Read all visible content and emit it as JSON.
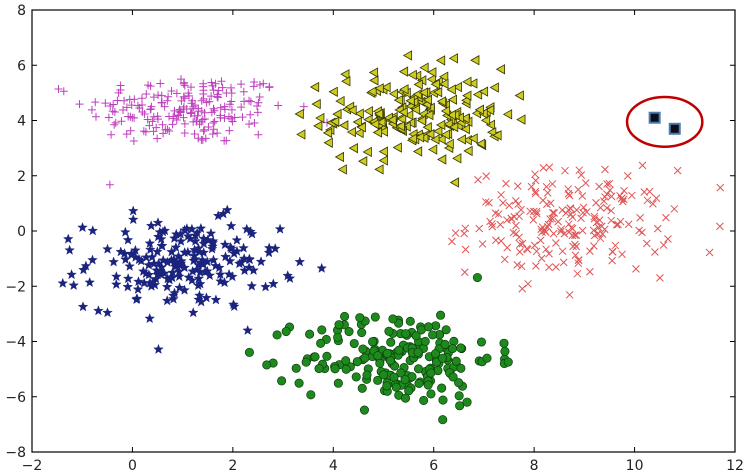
{
  "chart_data": {
    "type": "scatter",
    "title": "",
    "xlabel": "",
    "ylabel": "",
    "xlim": [
      -2,
      12
    ],
    "ylim": [
      -8,
      8
    ],
    "x_ticks": [
      -2,
      0,
      2,
      4,
      6,
      8,
      10,
      12
    ],
    "y_ticks": [
      -8,
      -6,
      -4,
      -2,
      0,
      2,
      4,
      6,
      8
    ],
    "x_tick_labels": [
      "−2",
      "0",
      "2",
      "4",
      "6",
      "8",
      "10",
      "12"
    ],
    "y_tick_labels": [
      "−8",
      "−6",
      "−4",
      "−2",
      "0",
      "2",
      "4",
      "6",
      "8"
    ],
    "grid": false,
    "legend": "none",
    "series": [
      {
        "marker": "plus",
        "color": "#bf40bf",
        "center": [
          1.1,
          4.4
        ],
        "spread": [
          1.0,
          0.65
        ],
        "count": 200
      },
      {
        "marker": "triangle-left",
        "color": "#cccc22",
        "center": [
          5.6,
          4.2
        ],
        "spread": [
          0.9,
          0.85
        ],
        "count": 200
      },
      {
        "marker": "x",
        "color": "#e05555",
        "center": [
          8.7,
          0.3
        ],
        "spread": [
          1.0,
          0.95
        ],
        "count": 200
      },
      {
        "marker": "star",
        "color": "#1a237e",
        "center": [
          1.0,
          -1.2
        ],
        "spread": [
          0.95,
          0.8
        ],
        "count": 200
      },
      {
        "marker": "circle",
        "color": "#1e8a1e",
        "center": [
          5.3,
          -4.6
        ],
        "spread": [
          0.95,
          0.85
        ],
        "count": 200
      },
      {
        "marker": "square",
        "color": "#1f3f6a",
        "points": [
          [
            10.4,
            4.1
          ],
          [
            10.8,
            3.7
          ]
        ]
      }
    ],
    "annotations": [
      {
        "type": "ellipse",
        "color": "#c00000",
        "center": [
          10.6,
          3.95
        ],
        "radius": [
          0.75,
          0.9
        ]
      }
    ]
  }
}
